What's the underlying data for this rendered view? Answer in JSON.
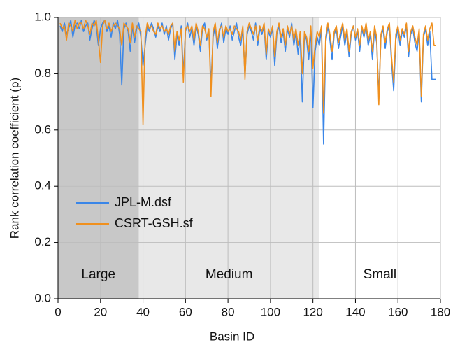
{
  "chart_data": {
    "type": "line",
    "xlabel": "Basin ID",
    "ylabel": "Rank correlation coefficient (ρ)",
    "xlim": [
      0,
      180
    ],
    "ylim": [
      0,
      1
    ],
    "xticks": [
      0,
      20,
      40,
      60,
      80,
      100,
      120,
      140,
      160,
      180
    ],
    "yticks": [
      {
        "value": 0,
        "label": "0.0"
      },
      0.2,
      0.4,
      0.6,
      0.8,
      {
        "value": 1,
        "label": "1.0"
      }
    ],
    "grid": true,
    "legend_position": "left",
    "regions": [
      {
        "label": "Large",
        "start": 0,
        "end": 38,
        "color": "#c8c8c8"
      },
      {
        "label": "Medium",
        "start": 38,
        "end": 123,
        "color": "#e8e8e8"
      },
      {
        "label": "Small",
        "start": 123,
        "end": 180,
        "color": "#ffffff"
      }
    ],
    "x": [
      1,
      2,
      3,
      4,
      5,
      6,
      7,
      8,
      9,
      10,
      11,
      12,
      13,
      14,
      15,
      16,
      17,
      18,
      19,
      20,
      21,
      22,
      23,
      24,
      25,
      26,
      27,
      28,
      29,
      30,
      31,
      32,
      33,
      34,
      35,
      36,
      37,
      38,
      39,
      40,
      41,
      42,
      43,
      44,
      45,
      46,
      47,
      48,
      49,
      50,
      51,
      52,
      53,
      54,
      55,
      56,
      57,
      58,
      59,
      60,
      61,
      62,
      63,
      64,
      65,
      66,
      67,
      68,
      69,
      70,
      71,
      72,
      73,
      74,
      75,
      76,
      77,
      78,
      79,
      80,
      81,
      82,
      83,
      84,
      85,
      86,
      87,
      88,
      89,
      90,
      91,
      92,
      93,
      94,
      95,
      96,
      97,
      98,
      99,
      100,
      101,
      102,
      103,
      104,
      105,
      106,
      107,
      108,
      109,
      110,
      111,
      112,
      113,
      114,
      115,
      116,
      117,
      118,
      119,
      120,
      121,
      122,
      123,
      124,
      125,
      126,
      127,
      128,
      129,
      130,
      131,
      132,
      133,
      134,
      135,
      136,
      137,
      138,
      139,
      140,
      141,
      142,
      143,
      144,
      145,
      146,
      147,
      148,
      149,
      150,
      151,
      152,
      153,
      154,
      155,
      156,
      157,
      158,
      159,
      160,
      161,
      162,
      163,
      164,
      165,
      166,
      167,
      168,
      169,
      170,
      171,
      172,
      173,
      174,
      175,
      176,
      177,
      178
    ],
    "series": [
      {
        "name": "JPL-M.dsf",
        "color": "#3a86e8",
        "values": [
          0.97,
          0.95,
          0.98,
          0.94,
          0.96,
          0.99,
          0.93,
          0.97,
          0.98,
          0.96,
          0.99,
          0.95,
          0.97,
          0.98,
          0.92,
          0.96,
          0.99,
          0.97,
          0.9,
          0.96,
          0.98,
          0.99,
          0.95,
          0.97,
          0.93,
          0.98,
          0.96,
          0.99,
          0.94,
          0.76,
          0.96,
          0.98,
          0.95,
          0.88,
          0.97,
          0.91,
          0.96,
          0.98,
          0.93,
          0.83,
          0.9,
          0.97,
          0.95,
          0.98,
          0.96,
          0.93,
          0.97,
          0.95,
          0.98,
          0.94,
          0.97,
          0.92,
          0.96,
          0.98,
          0.85,
          0.94,
          0.9,
          0.97,
          0.8,
          0.95,
          0.98,
          0.93,
          0.96,
          0.9,
          0.97,
          0.94,
          0.88,
          0.96,
          0.98,
          0.92,
          0.95,
          0.76,
          0.93,
          0.97,
          0.89,
          0.95,
          0.98,
          0.91,
          0.96,
          0.94,
          0.97,
          0.92,
          0.95,
          0.98,
          0.93,
          0.9,
          0.96,
          0.79,
          0.94,
          0.97,
          0.95,
          0.92,
          0.98,
          0.9,
          0.96,
          0.94,
          0.97,
          0.85,
          0.95,
          0.93,
          0.96,
          0.83,
          0.94,
          0.97,
          0.91,
          0.95,
          0.88,
          0.96,
          0.93,
          0.98,
          0.9,
          0.95,
          0.87,
          0.93,
          0.7,
          0.94,
          0.92,
          0.85,
          0.96,
          0.68,
          0.88,
          0.93,
          0.9,
          0.96,
          0.55,
          0.91,
          0.97,
          0.92,
          0.85,
          0.94,
          0.96,
          0.89,
          0.93,
          0.97,
          0.9,
          0.95,
          0.86,
          0.94,
          0.97,
          0.92,
          0.95,
          0.88,
          0.96,
          0.93,
          0.97,
          0.9,
          0.94,
          0.85,
          0.96,
          0.91,
          0.72,
          0.93,
          0.96,
          0.89,
          0.95,
          0.97,
          0.84,
          0.74,
          0.92,
          0.96,
          0.9,
          0.95,
          0.93,
          0.97,
          0.86,
          0.94,
          0.96,
          0.91,
          0.88,
          0.95,
          0.7,
          0.93,
          0.96,
          0.9,
          0.95,
          0.78,
          0.78,
          0.78
        ]
      },
      {
        "name": "CSRT-GSH.sf",
        "color": "#f0901e",
        "values": [
          0.98,
          0.96,
          0.97,
          0.92,
          0.98,
          0.97,
          0.95,
          0.99,
          0.96,
          0.98,
          0.98,
          0.96,
          0.99,
          0.97,
          0.94,
          0.98,
          0.97,
          0.99,
          0.92,
          0.84,
          0.97,
          0.99,
          0.96,
          0.98,
          0.95,
          0.97,
          0.98,
          0.97,
          0.96,
          0.9,
          0.98,
          0.97,
          0.96,
          0.91,
          0.98,
          0.93,
          0.97,
          0.96,
          0.95,
          0.62,
          0.93,
          0.98,
          0.96,
          0.97,
          0.95,
          0.94,
          0.98,
          0.96,
          0.97,
          0.95,
          0.96,
          0.94,
          0.97,
          0.98,
          0.88,
          0.95,
          0.92,
          0.96,
          0.77,
          0.96,
          0.97,
          0.95,
          0.97,
          0.92,
          0.98,
          0.95,
          0.9,
          0.97,
          0.96,
          0.93,
          0.96,
          0.72,
          0.95,
          0.98,
          0.91,
          0.96,
          0.97,
          0.93,
          0.97,
          0.95,
          0.96,
          0.94,
          0.97,
          0.96,
          0.95,
          0.92,
          0.97,
          0.78,
          0.95,
          0.98,
          0.96,
          0.94,
          0.97,
          0.92,
          0.97,
          0.95,
          0.98,
          0.87,
          0.96,
          0.94,
          0.97,
          0.86,
          0.95,
          0.98,
          0.93,
          0.96,
          0.9,
          0.97,
          0.94,
          0.97,
          0.92,
          0.96,
          0.9,
          0.95,
          0.8,
          0.95,
          0.93,
          0.88,
          0.97,
          0.82,
          0.9,
          0.95,
          0.93,
          0.97,
          0.66,
          0.93,
          0.98,
          0.94,
          0.88,
          0.95,
          0.97,
          0.91,
          0.95,
          0.98,
          0.92,
          0.96,
          0.88,
          0.95,
          0.97,
          0.93,
          0.96,
          0.9,
          0.97,
          0.94,
          0.98,
          0.92,
          0.95,
          0.88,
          0.97,
          0.93,
          0.69,
          0.94,
          0.97,
          0.91,
          0.96,
          0.98,
          0.86,
          0.77,
          0.94,
          0.97,
          0.92,
          0.96,
          0.94,
          0.98,
          0.88,
          0.95,
          0.97,
          0.93,
          0.9,
          0.96,
          0.72,
          0.94,
          0.97,
          0.92,
          0.96,
          0.98,
          0.9,
          0.9
        ]
      }
    ]
  }
}
